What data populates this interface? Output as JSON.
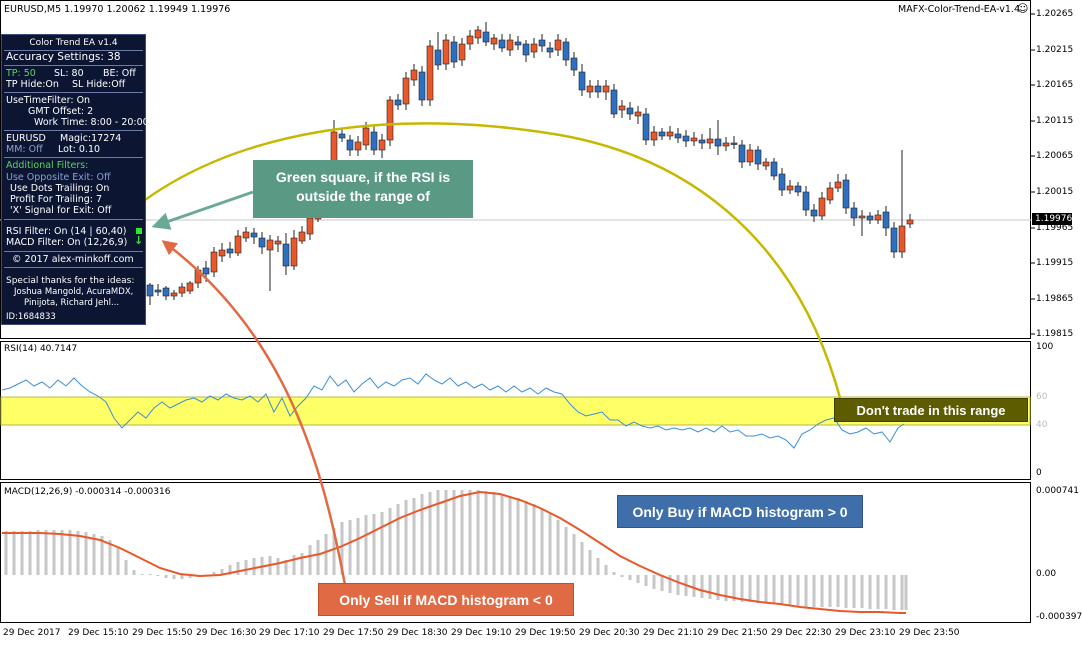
{
  "header": {
    "symbol_line": "EURUSD,M5  1.19970 1.20062 1.19949 1.19976",
    "indicator_name": "MAFX-Color-Trend-EA-v1.4",
    "smiley": "☺"
  },
  "price_axis": {
    "labels": [
      "1.20265",
      "1.20215",
      "1.20165",
      "1.20115",
      "1.20065",
      "1.20015",
      "1.19965",
      "1.19915",
      "1.19865",
      "1.19815"
    ],
    "current_price": "1.19976"
  },
  "rsi": {
    "label": "RSI(14) 40.7147",
    "levels": {
      "top": "100",
      "upper": "60",
      "lower": "40",
      "bottom": "0"
    }
  },
  "macd": {
    "label": "MACD(12,26,9) -0.000314 -0.000316",
    "levels": {
      "top": "0.000741",
      "zero": "0.00",
      "bottom": "-0.000397"
    }
  },
  "time_axis": [
    "29 Dec 2017",
    "29 Dec 15:10",
    "29 Dec 15:50",
    "29 Dec 16:30",
    "29 Dec 17:10",
    "29 Dec 17:50",
    "29 Dec 18:30",
    "29 Dec 19:10",
    "29 Dec 19:50",
    "29 Dec 20:30",
    "29 Dec 21:10",
    "29 Dec 21:50",
    "29 Dec 22:30",
    "29 Dec 23:10",
    "29 Dec 23:50"
  ],
  "panel": {
    "title": "Color Trend EA v1.4",
    "accuracy": "Accuracy Settings: 38",
    "tp": "TP: 50",
    "sl": "SL: 80",
    "be": "BE: Off",
    "tp_hide": "TP Hide:On",
    "sl_hide": "SL Hide:Off",
    "time_filter": "UseTimeFilter: On",
    "gmt_offset": "GMT Offset: 2",
    "work_time": "Work Time: 8:00 - 20:00",
    "symbol": "EURUSD",
    "magic": "Magic:17274",
    "mm": "MM: Off",
    "lot": "Lot: 0.10",
    "additional_filters": "Additional Filters:",
    "opposite_exit": "Use Opposite Exit: Off",
    "dots_trailing": "Use Dots Trailing: On",
    "profit_trailing": "Profit For Trailing: 7",
    "x_signal": "'X' Signal for Exit: Off",
    "rsi_filter": "RSI Filter: On (14 | 60,40)",
    "macd_filter": "MACD Filter: On (12,26,9)",
    "copyright": "© 2017 alex-minkoff.com",
    "thanks_title": "Special thanks for the ideas:",
    "thanks_1": "Joshua Mangold, AcuraMDX,",
    "thanks_2": "Pinijota, Richard Jehl...",
    "id": "ID:1684833"
  },
  "callouts": {
    "green_square": "Green square, if the RSI is outside the range of",
    "dont_trade": "Don't trade in this range",
    "only_buy": "Only Buy if MACD histogram > 0",
    "only_sell": "Only Sell if MACD histogram < 0"
  },
  "colors": {
    "bull_candle": "#2f6fbf",
    "bear_candle": "#e8582a",
    "panel_bg": "#0c1633",
    "rsi_band": "#ffff66",
    "rsi_line": "#3c8fd6",
    "macd_hist": "#c6c6c6",
    "macd_signal": "#e8582a",
    "callout_green": "#5a9a84",
    "callout_blue": "#3f6faa",
    "callout_orange": "#e06a44",
    "callout_olive": "#6b6a00"
  }
}
